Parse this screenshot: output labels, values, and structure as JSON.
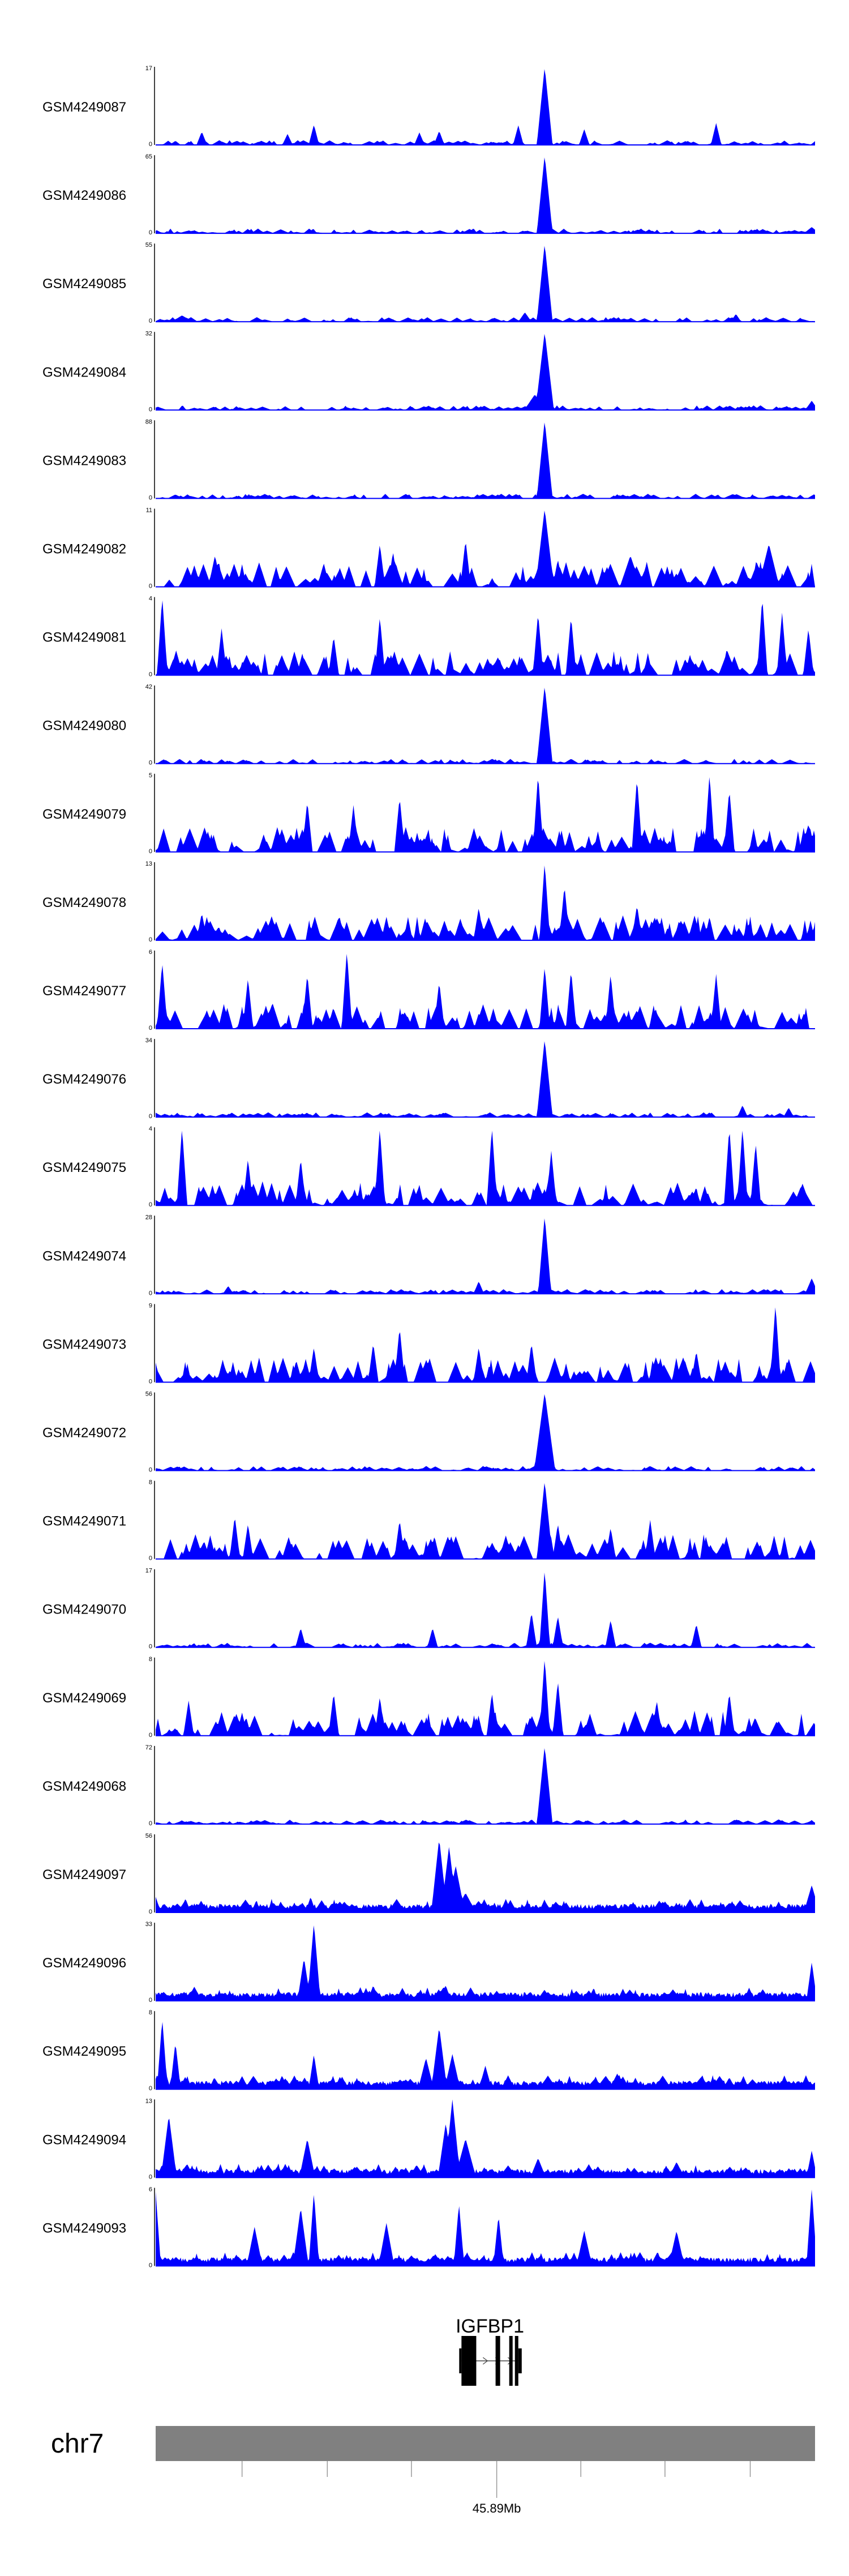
{
  "chart_data": {
    "type": "area",
    "title": "",
    "track_color": "#0000ff",
    "axis_color": "#000000",
    "x_window_mb": [
      45.8594,
      45.9174
    ],
    "tracks": [
      {
        "name": "GSM4249087",
        "ymax": "17",
        "ymin": "0",
        "peaks": [
          [
            0.59,
            1.0,
            0.006
          ],
          [
            0.2,
            0.14,
            0.004
          ],
          [
            0.4,
            0.16,
            0.004
          ],
          [
            0.85,
            0.28,
            0.004
          ],
          [
            0.43,
            0.18,
            0.004
          ],
          [
            0.07,
            0.17,
            0.004
          ],
          [
            0.55,
            0.25,
            0.004
          ],
          [
            0.24,
            0.26,
            0.004
          ],
          [
            0.65,
            0.2,
            0.004
          ]
        ]
      },
      {
        "name": "GSM4249086",
        "ymax": "65",
        "ymin": "0",
        "peaks": [
          [
            0.59,
            1.0,
            0.006
          ],
          [
            0.995,
            0.08,
            0.006
          ]
        ]
      },
      {
        "name": "GSM4249085",
        "ymax": "55",
        "ymin": "0",
        "peaks": [
          [
            0.59,
            1.0,
            0.006
          ],
          [
            0.04,
            0.08,
            0.008
          ],
          [
            0.56,
            0.12,
            0.005
          ],
          [
            0.88,
            0.1,
            0.004
          ]
        ]
      },
      {
        "name": "GSM4249084",
        "ymax": "32",
        "ymin": "0",
        "peaks": [
          [
            0.59,
            1.0,
            0.007
          ],
          [
            0.575,
            0.2,
            0.008
          ],
          [
            0.995,
            0.12,
            0.005
          ]
        ]
      },
      {
        "name": "GSM4249083",
        "ymax": "88",
        "ymin": "0",
        "peaks": [
          [
            0.59,
            1.0,
            0.006
          ],
          [
            0.03,
            0.05,
            0.006
          ]
        ]
      },
      {
        "name": "GSM4249082",
        "ymax": "11",
        "ymin": "0",
        "peaks": [
          [
            0.59,
            1.0,
            0.007
          ],
          [
            0.47,
            0.6,
            0.004
          ],
          [
            0.34,
            0.55,
            0.004
          ],
          [
            0.93,
            0.55,
            0.008
          ],
          [
            0.09,
            0.4,
            0.005
          ],
          [
            0.36,
            0.45,
            0.004
          ],
          [
            0.72,
            0.4,
            0.008
          ],
          [
            0.61,
            0.35,
            0.004
          ]
        ]
      },
      {
        "name": "GSM4249081",
        "ymax": "4",
        "ymin": "0",
        "peaks": [
          [
            0.01,
            1.0,
            0.004
          ],
          [
            0.92,
            1.0,
            0.004
          ],
          [
            0.95,
            0.8,
            0.004
          ],
          [
            0.34,
            0.75,
            0.004
          ],
          [
            0.58,
            0.8,
            0.004
          ],
          [
            0.63,
            0.75,
            0.004
          ],
          [
            0.27,
            0.5,
            0.004
          ],
          [
            0.1,
            0.6,
            0.004
          ],
          [
            0.99,
            0.6,
            0.004
          ]
        ]
      },
      {
        "name": "GSM4249080",
        "ymax": "42",
        "ymin": "0",
        "peaks": [
          [
            0.59,
            1.0,
            0.006
          ],
          [
            0.63,
            0.06,
            0.006
          ],
          [
            0.16,
            0.04,
            0.004
          ]
        ]
      },
      {
        "name": "GSM4249079",
        "ymax": "5",
        "ymin": "0",
        "peaks": [
          [
            0.58,
            1.0,
            0.004
          ],
          [
            0.73,
            0.95,
            0.004
          ],
          [
            0.84,
            1.0,
            0.004
          ],
          [
            0.87,
            0.8,
            0.004
          ],
          [
            0.23,
            0.65,
            0.004
          ],
          [
            0.37,
            0.7,
            0.004
          ],
          [
            0.3,
            0.6,
            0.004
          ],
          [
            0.99,
            0.35,
            0.006
          ]
        ]
      },
      {
        "name": "GSM4249078",
        "ymax": "13",
        "ymin": "0",
        "peaks": [
          [
            0.59,
            1.0,
            0.004
          ],
          [
            0.62,
            0.7,
            0.004
          ],
          [
            0.49,
            0.42,
            0.004
          ],
          [
            0.73,
            0.45,
            0.004
          ],
          [
            0.07,
            0.35,
            0.004
          ],
          [
            0.35,
            0.3,
            0.004
          ],
          [
            0.84,
            0.3,
            0.004
          ]
        ]
      },
      {
        "name": "GSM4249077",
        "ymax": "6",
        "ymin": "0",
        "peaks": [
          [
            0.29,
            1.0,
            0.004
          ],
          [
            0.01,
            0.85,
            0.004
          ],
          [
            0.59,
            0.8,
            0.004
          ],
          [
            0.23,
            0.7,
            0.004
          ],
          [
            0.63,
            0.75,
            0.004
          ],
          [
            0.69,
            0.7,
            0.004
          ],
          [
            0.85,
            0.7,
            0.004
          ],
          [
            0.43,
            0.6,
            0.004
          ],
          [
            0.14,
            0.65,
            0.004
          ]
        ]
      },
      {
        "name": "GSM4249076",
        "ymax": "34",
        "ymin": "0",
        "peaks": [
          [
            0.59,
            1.0,
            0.006
          ],
          [
            0.89,
            0.15,
            0.004
          ],
          [
            0.96,
            0.12,
            0.004
          ],
          [
            0.07,
            0.05,
            0.004
          ]
        ]
      },
      {
        "name": "GSM4249075",
        "ymax": "4",
        "ymin": "0",
        "peaks": [
          [
            0.04,
            1.0,
            0.004
          ],
          [
            0.34,
            1.0,
            0.004
          ],
          [
            0.51,
            1.0,
            0.004
          ],
          [
            0.87,
            1.0,
            0.004
          ],
          [
            0.89,
            1.0,
            0.004
          ],
          [
            0.91,
            0.8,
            0.004
          ],
          [
            0.14,
            0.6,
            0.004
          ],
          [
            0.6,
            0.7,
            0.004
          ],
          [
            0.22,
            0.6,
            0.004
          ]
        ]
      },
      {
        "name": "GSM4249074",
        "ymax": "28",
        "ymin": "0",
        "peaks": [
          [
            0.59,
            1.0,
            0.005
          ],
          [
            0.995,
            0.2,
            0.005
          ],
          [
            0.49,
            0.16,
            0.004
          ],
          [
            0.11,
            0.1,
            0.004
          ]
        ]
      },
      {
        "name": "GSM4249073",
        "ymax": "9",
        "ymin": "0",
        "peaks": [
          [
            0.94,
            1.0,
            0.004
          ],
          [
            0.37,
            0.7,
            0.004
          ],
          [
            0.24,
            0.45,
            0.004
          ],
          [
            0.57,
            0.5,
            0.004
          ],
          [
            0.33,
            0.5,
            0.004
          ],
          [
            0.49,
            0.45,
            0.004
          ],
          [
            0.82,
            0.4,
            0.004
          ]
        ]
      },
      {
        "name": "GSM4249072",
        "ymax": "56",
        "ymin": "0",
        "peaks": [
          [
            0.59,
            1.0,
            0.008
          ],
          [
            0.22,
            0.05,
            0.004
          ]
        ]
      },
      {
        "name": "GSM4249071",
        "ymax": "8",
        "ymin": "0",
        "peaks": [
          [
            0.59,
            1.0,
            0.006
          ],
          [
            0.12,
            0.55,
            0.004
          ],
          [
            0.75,
            0.5,
            0.004
          ],
          [
            0.37,
            0.5,
            0.004
          ],
          [
            0.14,
            0.45,
            0.004
          ],
          [
            0.61,
            0.45,
            0.004
          ],
          [
            0.69,
            0.4,
            0.004
          ]
        ]
      },
      {
        "name": "GSM4249070",
        "ymax": "17",
        "ymin": "0",
        "peaks": [
          [
            0.59,
            1.0,
            0.004
          ],
          [
            0.57,
            0.45,
            0.004
          ],
          [
            0.61,
            0.4,
            0.004
          ],
          [
            0.69,
            0.35,
            0.004
          ],
          [
            0.82,
            0.3,
            0.004
          ],
          [
            0.22,
            0.25,
            0.004
          ],
          [
            0.42,
            0.25,
            0.004
          ]
        ]
      },
      {
        "name": "GSM4249069",
        "ymax": "8",
        "ymin": "0",
        "peaks": [
          [
            0.59,
            1.0,
            0.004
          ],
          [
            0.51,
            0.55,
            0.004
          ],
          [
            0.61,
            0.7,
            0.004
          ],
          [
            0.76,
            0.45,
            0.004
          ],
          [
            0.27,
            0.55,
            0.004
          ],
          [
            0.34,
            0.5,
            0.004
          ],
          [
            0.05,
            0.45,
            0.004
          ],
          [
            0.87,
            0.55,
            0.004
          ]
        ]
      },
      {
        "name": "GSM4249068",
        "ymax": "72",
        "ymin": "0",
        "peaks": [
          [
            0.59,
            1.0,
            0.006
          ],
          [
            0.57,
            0.06,
            0.004
          ]
        ]
      },
      {
        "name": "GSM4249097",
        "ymax": "56",
        "ymin": "0",
        "peaks": [
          [
            0.43,
            0.95,
            0.006
          ],
          [
            0.445,
            0.85,
            0.006
          ],
          [
            0.455,
            0.6,
            0.007
          ],
          [
            0.47,
            0.25,
            0.008
          ],
          [
            0.0,
            0.2,
            0.004
          ],
          [
            0.235,
            0.2,
            0.004
          ],
          [
            0.995,
            0.35,
            0.006
          ]
        ]
      },
      {
        "name": "GSM4249096",
        "ymax": "33",
        "ymin": "0",
        "peaks": [
          [
            0.24,
            1.0,
            0.005
          ],
          [
            0.225,
            0.55,
            0.005
          ],
          [
            0.995,
            0.5,
            0.004
          ],
          [
            0.33,
            0.2,
            0.004
          ],
          [
            0.44,
            0.2,
            0.004
          ],
          [
            0.56,
            0.08,
            0.004
          ]
        ]
      },
      {
        "name": "GSM4249095",
        "ymax": "8",
        "ymin": "0",
        "peaks": [
          [
            0.43,
            0.8,
            0.006
          ],
          [
            0.41,
            0.4,
            0.006
          ],
          [
            0.45,
            0.45,
            0.006
          ],
          [
            0.01,
            0.9,
            0.004
          ],
          [
            0.03,
            0.6,
            0.004
          ],
          [
            0.24,
            0.45,
            0.004
          ],
          [
            0.5,
            0.3,
            0.005
          ],
          [
            0.7,
            0.2,
            0.006
          ],
          [
            0.87,
            0.15,
            0.005
          ]
        ]
      },
      {
        "name": "GSM4249094",
        "ymax": "13",
        "ymin": "0",
        "peaks": [
          [
            0.45,
            1.0,
            0.006
          ],
          [
            0.44,
            0.7,
            0.006
          ],
          [
            0.23,
            0.5,
            0.006
          ],
          [
            0.02,
            0.8,
            0.006
          ],
          [
            0.47,
            0.5,
            0.008
          ],
          [
            0.995,
            0.35,
            0.004
          ],
          [
            0.58,
            0.25,
            0.006
          ],
          [
            0.79,
            0.2,
            0.006
          ]
        ]
      },
      {
        "name": "GSM4249093",
        "ymax": "6",
        "ymin": "0",
        "peaks": [
          [
            0.995,
            1.0,
            0.004
          ],
          [
            0.0,
            0.95,
            0.004
          ],
          [
            0.24,
            0.95,
            0.004
          ],
          [
            0.22,
            0.75,
            0.006
          ],
          [
            0.46,
            0.8,
            0.004
          ],
          [
            0.52,
            0.65,
            0.004
          ],
          [
            0.15,
            0.5,
            0.006
          ],
          [
            0.35,
            0.55,
            0.006
          ],
          [
            0.65,
            0.45,
            0.006
          ],
          [
            0.79,
            0.45,
            0.006
          ]
        ]
      }
    ],
    "gene": {
      "name": "IGFBP1",
      "start_mb": 45.8863,
      "end_mb": 45.8913,
      "exons": [
        [
          45.8863,
          45.8876
        ],
        [
          45.8893,
          45.8897
        ],
        [
          45.8905,
          45.8908
        ],
        [
          45.891,
          45.8913
        ]
      ],
      "utrs": [
        [
          45.8861,
          45.8863
        ],
        [
          45.8913,
          45.8916
        ]
      ]
    },
    "chromosome": {
      "label": "chr7",
      "ticks": [
        45.867,
        45.8745,
        45.8819,
        45.8894,
        45.8968,
        45.9042,
        45.9117,
        45.9191
      ],
      "tick_labels": {
        "45.8894": "45.89Mb"
      }
    }
  }
}
